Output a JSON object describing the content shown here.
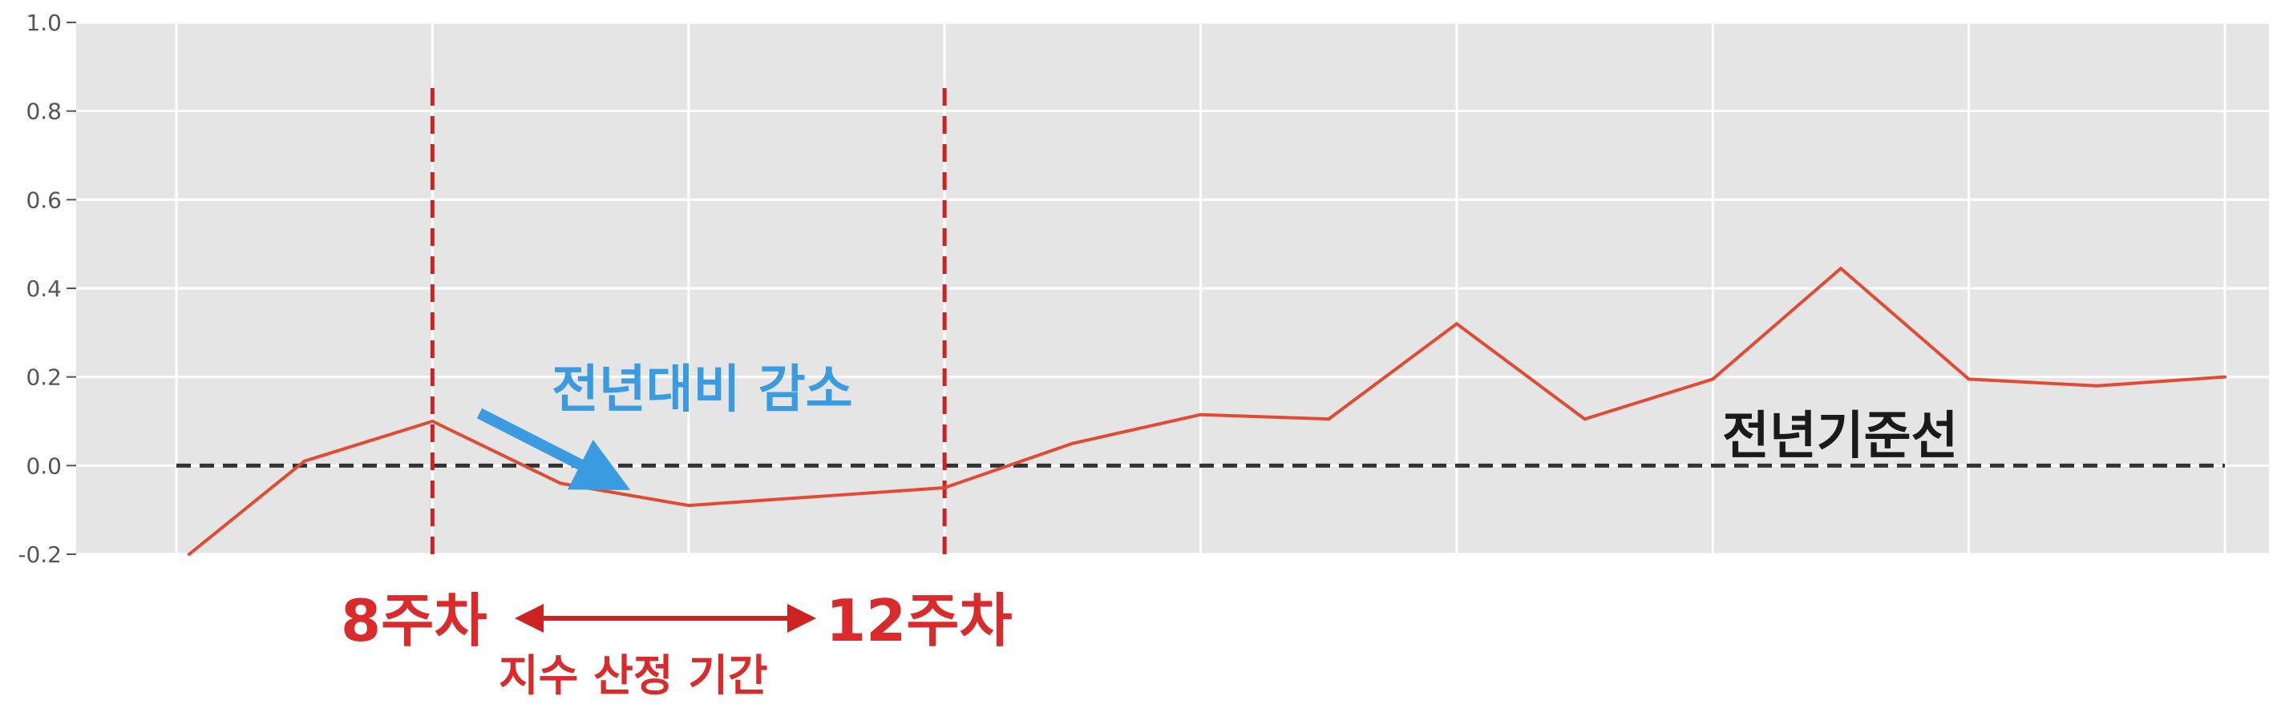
{
  "chart_data": {
    "type": "line",
    "title": "",
    "xlabel": "",
    "ylabel": "",
    "ylim": [
      -0.2,
      1.0
    ],
    "yticks": [
      "-0.2",
      "0.0",
      "0.2",
      "0.4",
      "0.6",
      "0.8",
      "1.0"
    ],
    "grid": true,
    "x": [
      0.1,
      1,
      2,
      3,
      4,
      5,
      6,
      7,
      8,
      9,
      10,
      11,
      12,
      13,
      14,
      15,
      16
    ],
    "series": [
      {
        "values": [
          -0.2,
          0.01,
          0.1,
          -0.04,
          -0.09,
          -0.07,
          -0.05,
          0.05,
          0.115,
          0.105,
          0.32,
          0.105,
          0.195,
          0.445,
          0.195,
          0.18,
          0.2
        ]
      }
    ],
    "baseline": {
      "value": 0.0,
      "label": "전년기준선"
    },
    "markers": [
      {
        "x": 2,
        "label": "8주차"
      },
      {
        "x": 6,
        "label": "12주차"
      }
    ],
    "range_label": "지수 산정 기간",
    "annotation": {
      "label": "전년대비 감소"
    },
    "colors": {
      "series": "#e24a33",
      "markers": "#cc2222",
      "baseline": "#333333",
      "arrow": "#3b9be0",
      "plot_bg": "#e5e5e5",
      "grid": "#ffffff"
    }
  }
}
